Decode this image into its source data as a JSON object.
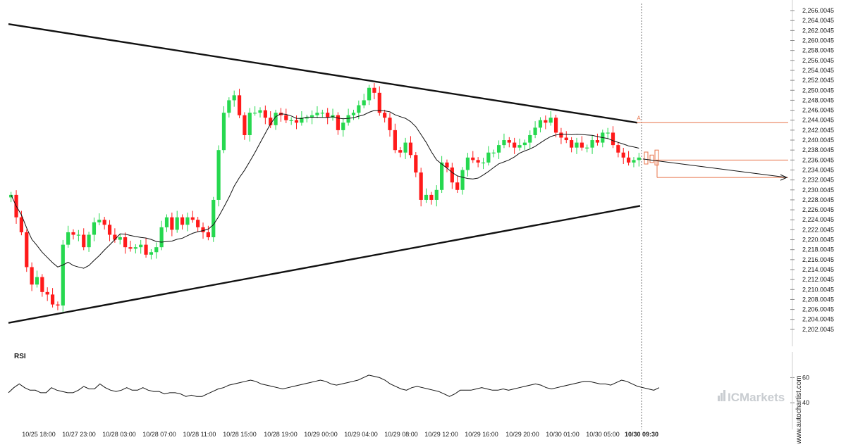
{
  "chart_data": [
    {
      "type": "candlestick",
      "title": "",
      "y_ticks": [
        "2,202.0045",
        "2,204.0045",
        "2,206.0045",
        "2,208.0045",
        "2,210.0045",
        "2,212.0045",
        "2,214.0045",
        "2,216.0045",
        "2,218.0045",
        "2,220.0045",
        "2,222.0045",
        "2,224.0045",
        "2,226.0045",
        "2,228.0045",
        "2,230.0045",
        "2,232.0045",
        "2,234.0045",
        "2,236.0045",
        "2,238.0045",
        "2,240.0045",
        "2,242.0045",
        "2,244.0045",
        "2,246.0045",
        "2,248.0045",
        "2,250.0045",
        "2,252.0045",
        "2,254.0045",
        "2,256.0045",
        "2,258.0045",
        "2,260.0045",
        "2,262.0045",
        "2,264.0045",
        "2,266.0045"
      ],
      "ylim": [
        2201,
        2267
      ],
      "x_ticks": [
        "10/25 18:00",
        "10/27 23:00",
        "10/28 03:00",
        "10/28 07:00",
        "10/28 11:00",
        "10/28 15:00",
        "10/28 19:00",
        "10/29 00:00",
        "10/29 04:00",
        "10/29 08:00",
        "10/29 12:00",
        "10/29 16:00",
        "10/29 20:00",
        "10/30 01:00",
        "10/30 05:00",
        "10/30 09:30"
      ],
      "current_time_label": "10/30 09:30",
      "closes": [
        2229,
        2224.5,
        2221.5,
        2214.5,
        2211,
        2212.5,
        2209.5,
        2209,
        2207,
        2206.8,
        2219,
        2221.5,
        2221,
        2221,
        2218.5,
        2221,
        2223.5,
        2224,
        2223,
        2221,
        2220,
        2220.5,
        2218.5,
        2218.2,
        2218.5,
        2219,
        2217,
        2217.5,
        2218.5,
        2222.5,
        2224.5,
        2222,
        2224.5,
        2223,
        2224.5,
        2224,
        2222.5,
        2221.5,
        2220.5,
        2228,
        2238,
        2245.5,
        2248,
        2249,
        2245,
        2241,
        2245.5,
        2245.5,
        2246,
        2244.5,
        2243,
        2245.5,
        2245,
        2244,
        2244,
        2243.5,
        2244.5,
        2244.5,
        2245,
        2245.5,
        2245.5,
        2244.5,
        2245,
        2242,
        2243.5,
        2245,
        2245.5,
        2247,
        2248,
        2250.5,
        2249.5,
        2245.5,
        2244.5,
        2242,
        2238,
        2237.5,
        2239.5,
        2237,
        2233.5,
        2228,
        2229,
        2228,
        2230,
        2235.5,
        2234.5,
        2231.5,
        2230,
        2234,
        2236.5,
        2236,
        2235.5,
        2235.5,
        2237.5,
        2237.5,
        2239,
        2240,
        2239.5,
        2238.5,
        2239,
        2239.5,
        2241,
        2242.5,
        2244,
        2243.5,
        2244.5,
        2241.5,
        2240.5,
        2240,
        2238.5,
        2239.5,
        2238.5,
        2238.5,
        2240,
        2239.5,
        2241.5,
        2241.5,
        2239,
        2237.5,
        2236.5,
        2235.5,
        2236,
        2236.5
      ],
      "ma_label": "",
      "rsi": {
        "label": "RSI",
        "ticks": [
          "60",
          "40"
        ],
        "ylim": [
          30,
          72
        ],
        "values": [
          48,
          52,
          55,
          52,
          50,
          50,
          48,
          48,
          52,
          50,
          49,
          48,
          48,
          50,
          53,
          51,
          51,
          55,
          52,
          50,
          49,
          50,
          52,
          50,
          50,
          52,
          50,
          49,
          49,
          47,
          48,
          48,
          47,
          45,
          46,
          45,
          45,
          47,
          49,
          51,
          52,
          54,
          55,
          56,
          57,
          58,
          57,
          55,
          54,
          53,
          52,
          51,
          52,
          53,
          54,
          55,
          56,
          57,
          58,
          57,
          55,
          54,
          55,
          56,
          57,
          58,
          60,
          62,
          61,
          60,
          58,
          55,
          53,
          51,
          50,
          52,
          53,
          52,
          51,
          50,
          49,
          47,
          45,
          47,
          50,
          50,
          50,
          51,
          52,
          51,
          50,
          50,
          51,
          50,
          51,
          52,
          53,
          54,
          55,
          54,
          52,
          51,
          52,
          53,
          54,
          55,
          56,
          57,
          57,
          56,
          55,
          55,
          54,
          56,
          58,
          57,
          55,
          53,
          52,
          51,
          50,
          52
        ]
      },
      "annotations": {
        "pattern": "triangle",
        "resistance_line": {
          "label": "",
          "x_start": 0,
          "y_start": 2263.3,
          "x_end": 1,
          "y_end": 2243.5
        },
        "support_line": {
          "label": "",
          "x_start": 0,
          "y_start": 2203.3,
          "x_end": 1,
          "y_end": 2226.8
        },
        "breakout_marker": "A",
        "levels": [
          2243.5,
          2236.0,
          2232.5
        ],
        "forecast_target": 2232.5
      }
    }
  ],
  "branding": {
    "broker": "ICMarkets",
    "vertical_text": "www.autochartist.com",
    "accent_color": "#26d84f",
    "bear_color": "#ff1a1a",
    "level_color": "#e8734a"
  }
}
